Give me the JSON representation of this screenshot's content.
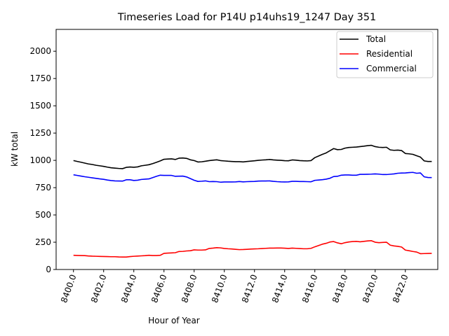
{
  "chart_data": {
    "type": "line",
    "title": "Timeseries Load for P14U p14uhs19_1247  Day 351",
    "xlabel": "Hour of Year",
    "ylabel": "kW total",
    "xlim": [
      8398.85,
      8424.15
    ],
    "ylim": [
      0,
      2200
    ],
    "xticks": [
      8400,
      8402,
      8404,
      8406,
      8408,
      8410,
      8412,
      8414,
      8416,
      8418,
      8420,
      8422
    ],
    "xtick_labels": [
      "8400.0",
      "8402.0",
      "8404.0",
      "8406.0",
      "8408.0",
      "8410.0",
      "8412.0",
      "8414.0",
      "8416.0",
      "8418.0",
      "8420.0",
      "8422.0"
    ],
    "yticks": [
      0,
      250,
      500,
      750,
      1000,
      1250,
      1500,
      1750,
      2000
    ],
    "ytick_labels": [
      "0",
      "250",
      "500",
      "750",
      "1000",
      "1250",
      "1500",
      "1750",
      "2000"
    ],
    "legend_position": "top-right",
    "x": [
      8400.0,
      8400.25,
      8400.5,
      8400.75,
      8401.0,
      8401.25,
      8401.5,
      8401.75,
      8402.0,
      8402.25,
      8402.5,
      8402.75,
      8403.0,
      8403.25,
      8403.5,
      8403.75,
      8404.0,
      8404.25,
      8404.5,
      8404.75,
      8405.0,
      8405.25,
      8405.5,
      8405.75,
      8406.0,
      8406.25,
      8406.5,
      8406.75,
      8407.0,
      8407.25,
      8407.5,
      8407.75,
      8408.0,
      8408.25,
      8408.5,
      8408.75,
      8409.0,
      8409.25,
      8409.5,
      8409.75,
      8410.0,
      8410.25,
      8410.5,
      8410.75,
      8411.0,
      8411.25,
      8411.5,
      8411.75,
      8412.0,
      8412.25,
      8412.5,
      8412.75,
      8413.0,
      8413.25,
      8413.5,
      8413.75,
      8414.0,
      8414.25,
      8414.5,
      8414.75,
      8415.0,
      8415.25,
      8415.5,
      8415.75,
      8416.0,
      8416.25,
      8416.5,
      8416.75,
      8417.0,
      8417.25,
      8417.5,
      8417.75,
      8418.0,
      8418.25,
      8418.5,
      8418.75,
      8419.0,
      8419.25,
      8419.5,
      8419.75,
      8420.0,
      8420.25,
      8420.5,
      8420.75,
      8421.0,
      8421.25,
      8421.5,
      8421.75,
      8422.0,
      8422.25,
      8422.5,
      8422.75,
      8423.0,
      8423.25,
      8423.5,
      8423.75
    ],
    "series": [
      {
        "name": "Total",
        "color": "#000000",
        "values": [
          998,
          990,
          983,
          975,
          967,
          962,
          955,
          950,
          945,
          938,
          932,
          929,
          926,
          924,
          936,
          939,
          937,
          940,
          950,
          955,
          960,
          970,
          982,
          995,
          1010,
          1012,
          1014,
          1008,
          1020,
          1022,
          1018,
          1005,
          998,
          985,
          987,
          992,
          998,
          1002,
          1005,
          998,
          995,
          992,
          990,
          988,
          988,
          986,
          990,
          993,
          996,
          1000,
          1003,
          1005,
          1008,
          1004,
          1002,
          1000,
          997,
          996,
          1004,
          1002,
          998,
          996,
          995,
          998,
          1025,
          1040,
          1055,
          1068,
          1088,
          1108,
          1098,
          1100,
          1112,
          1118,
          1120,
          1122,
          1126,
          1130,
          1135,
          1138,
          1126,
          1120,
          1118,
          1120,
          1096,
          1092,
          1094,
          1090,
          1063,
          1060,
          1055,
          1042,
          1030,
          995,
          990,
          990
        ]
      },
      {
        "name": "Residential",
        "color": "#ff0000",
        "values": [
          130,
          129,
          128,
          127,
          124,
          122,
          121,
          120,
          119,
          118,
          117,
          117,
          115,
          114,
          114,
          118,
          121,
          123,
          125,
          127,
          130,
          128,
          128,
          130,
          148,
          150,
          152,
          154,
          165,
          166,
          170,
          172,
          180,
          178,
          178,
          180,
          193,
          196,
          200,
          198,
          193,
          190,
          188,
          185,
          182,
          183,
          185,
          187,
          189,
          190,
          192,
          194,
          196,
          196,
          197,
          197,
          195,
          193,
          196,
          194,
          192,
          190,
          190,
          194,
          208,
          220,
          232,
          240,
          252,
          256,
          244,
          236,
          246,
          252,
          256,
          258,
          254,
          258,
          262,
          264,
          250,
          246,
          248,
          250,
          223,
          216,
          212,
          206,
          178,
          172,
          165,
          160,
          145,
          146,
          147,
          148
        ]
      },
      {
        "name": "Commercial",
        "color": "#0000ff",
        "values": [
          868,
          862,
          856,
          850,
          845,
          840,
          835,
          830,
          826,
          820,
          815,
          812,
          811,
          810,
          822,
          822,
          816,
          818,
          825,
          828,
          830,
          842,
          854,
          864,
          862,
          862,
          862,
          854,
          855,
          856,
          848,
          833,
          818,
          807,
          809,
          812,
          805,
          806,
          805,
          800,
          802,
          802,
          802,
          803,
          806,
          803,
          805,
          806,
          807,
          810,
          811,
          811,
          812,
          808,
          805,
          803,
          802,
          803,
          808,
          808,
          806,
          806,
          805,
          804,
          817,
          820,
          823,
          828,
          836,
          852,
          854,
          864,
          866,
          866,
          864,
          864,
          872,
          872,
          873,
          874,
          876,
          874,
          870,
          870,
          873,
          876,
          882,
          884,
          885,
          888,
          890,
          882,
          885,
          849,
          843,
          842
        ]
      }
    ]
  }
}
